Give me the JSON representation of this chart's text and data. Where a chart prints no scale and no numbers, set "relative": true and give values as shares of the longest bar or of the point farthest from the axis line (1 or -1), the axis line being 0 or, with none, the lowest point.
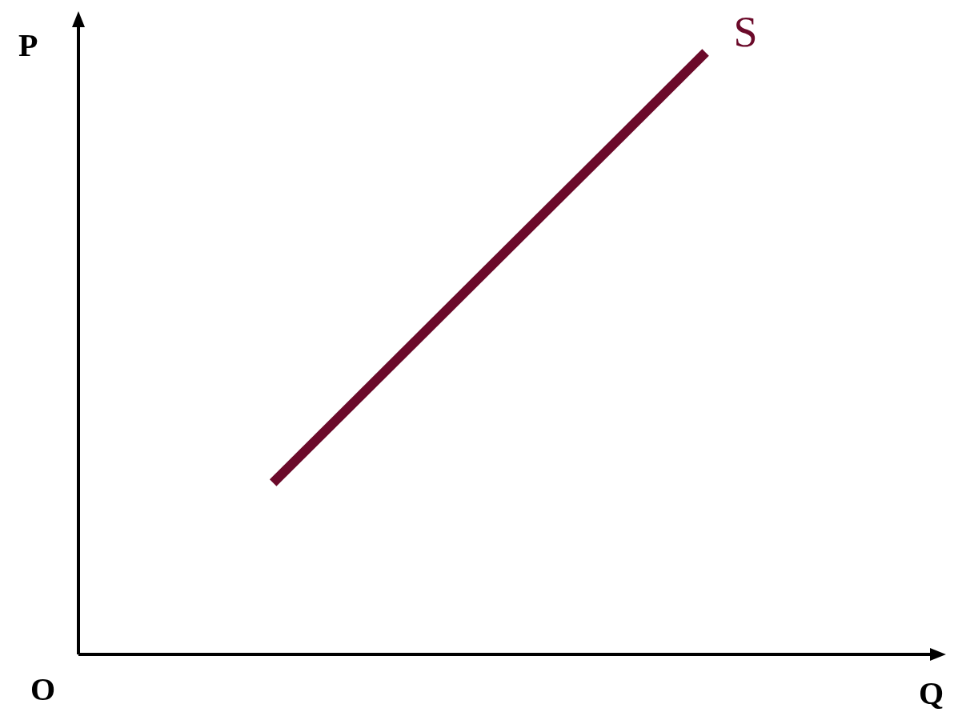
{
  "chart_data": {
    "type": "line",
    "relative": true,
    "xlabel": "Q",
    "ylabel": "P",
    "annotations": [
      "O"
    ],
    "categories": [
      null,
      null
    ],
    "series": [
      {
        "name": "S",
        "color": "#6b0a2a",
        "values": [
          0.285,
          1
        ]
      }
    ]
  }
}
